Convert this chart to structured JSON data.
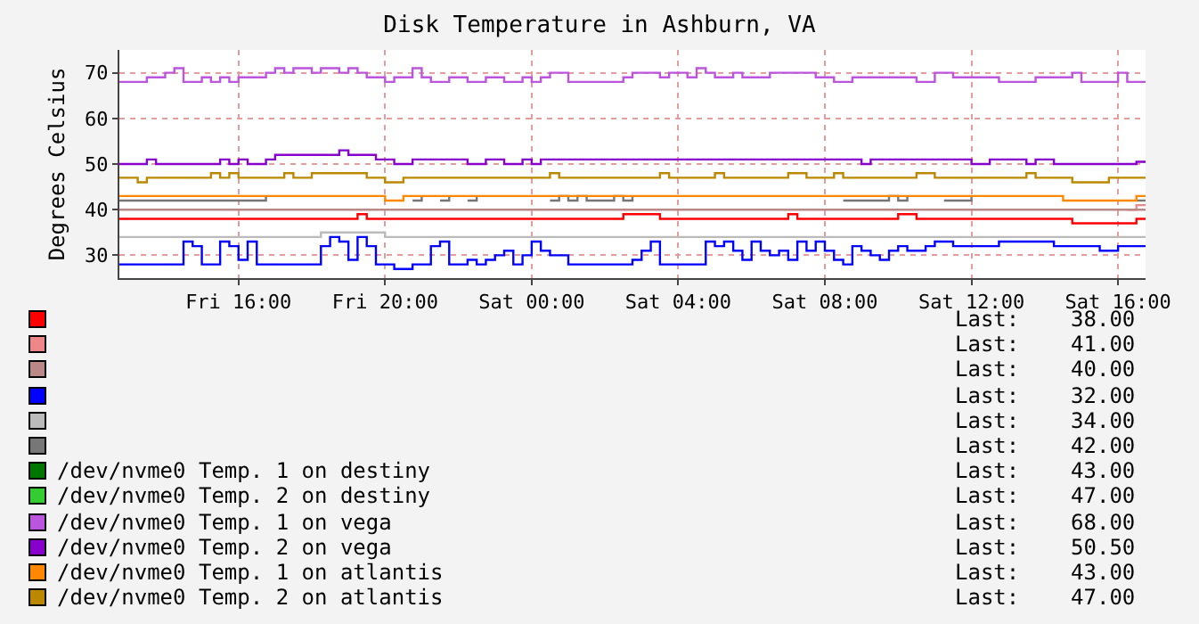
{
  "chart_data": {
    "type": "step",
    "title": "Disk Temperature in Ashburn, VA",
    "ylabel": "Degrees Celsius",
    "categories": [
      null,
      null,
      null,
      null,
      null,
      null,
      null,
      null,
      null,
      null,
      null,
      null,
      null,
      "Fri 16:00",
      null,
      null,
      null,
      null,
      null,
      null,
      null,
      null,
      null,
      null,
      null,
      null,
      null,
      null,
      null,
      "Fri 20:00",
      null,
      null,
      null,
      null,
      null,
      null,
      null,
      null,
      null,
      null,
      null,
      null,
      null,
      null,
      null,
      "Sat 00:00",
      null,
      null,
      null,
      null,
      null,
      null,
      null,
      null,
      null,
      null,
      null,
      null,
      null,
      null,
      null,
      "Sat 04:00",
      null,
      null,
      null,
      null,
      null,
      null,
      null,
      null,
      null,
      null,
      null,
      null,
      null,
      null,
      null,
      "Sat 08:00",
      null,
      null,
      null,
      null,
      null,
      null,
      null,
      null,
      null,
      null,
      null,
      null,
      null,
      null,
      null,
      "Sat 12:00",
      null,
      null,
      null,
      null,
      null,
      null,
      null,
      null,
      null,
      null,
      null,
      null,
      null,
      null,
      null,
      "Sat 16:00",
      null,
      null,
      null
    ],
    "ylim": [
      25,
      75
    ],
    "yticks": [
      30,
      40,
      50,
      60,
      70
    ],
    "grid": true,
    "legend": "bottom",
    "annotations": [
      "Last:    38.00",
      "Last:    41.00",
      "Last:    40.00",
      "Last:    32.00",
      "Last:    34.00",
      "Last:    42.00",
      "Last:    43.00",
      "Last:    47.00",
      "Last:    68.00",
      "Last:    50.50",
      "Last:    43.00",
      "Last:    47.00"
    ],
    "series": [
      {
        "color": "#ff0000",
        "values": [
          38,
          38,
          38,
          38,
          38,
          38,
          38,
          38,
          38,
          38,
          38,
          38,
          38,
          38,
          38,
          38,
          38,
          38,
          38,
          38,
          38,
          38,
          38,
          38,
          38,
          38,
          39,
          38,
          38,
          38,
          38,
          38,
          38,
          38,
          38,
          38,
          38,
          38,
          38,
          38,
          38,
          38,
          38,
          38,
          38,
          38,
          38,
          38,
          38,
          38,
          38,
          38,
          38,
          38,
          38,
          39,
          39,
          39,
          39,
          38,
          38,
          38,
          38,
          38,
          38,
          38,
          38,
          38,
          38,
          38,
          38,
          38,
          38,
          39,
          38,
          38,
          38,
          38,
          38,
          38,
          38,
          38,
          38,
          38,
          38,
          39,
          39,
          38,
          38,
          38,
          38,
          38,
          38,
          38,
          38,
          38,
          38,
          38,
          38,
          38,
          38,
          38,
          38,
          38,
          37,
          37,
          37,
          37,
          37,
          37,
          37,
          38,
          38
        ]
      },
      {
        "color": "#ee8888",
        "values": [
          null,
          null,
          null,
          null,
          null,
          null,
          null,
          null,
          null,
          null,
          null,
          null,
          null,
          null,
          null,
          null,
          null,
          null,
          null,
          null,
          null,
          null,
          null,
          null,
          null,
          null,
          null,
          null,
          null,
          null,
          null,
          null,
          null,
          null,
          null,
          null,
          null,
          null,
          null,
          null,
          null,
          null,
          null,
          null,
          null,
          null,
          null,
          null,
          null,
          null,
          null,
          null,
          null,
          null,
          null,
          null,
          null,
          null,
          null,
          null,
          null,
          null,
          null,
          null,
          null,
          null,
          null,
          null,
          null,
          null,
          null,
          null,
          null,
          null,
          null,
          null,
          null,
          null,
          null,
          null,
          null,
          null,
          null,
          null,
          null,
          null,
          null,
          null,
          null,
          null,
          null,
          null,
          null,
          null,
          null,
          null,
          null,
          null,
          null,
          null,
          null,
          null,
          null,
          null,
          null,
          null,
          null,
          null,
          null,
          null,
          40,
          41,
          41
        ]
      },
      {
        "color": "#bb8888",
        "values": [
          40,
          40,
          40,
          40,
          40,
          40,
          40,
          40,
          40,
          40,
          40,
          40,
          40,
          40,
          40,
          40,
          40,
          40,
          40,
          40,
          40,
          40,
          40,
          40,
          40,
          40,
          40,
          40,
          40,
          40,
          40,
          40,
          40,
          40,
          40,
          40,
          40,
          40,
          40,
          40,
          40,
          40,
          40,
          40,
          40,
          40,
          40,
          40,
          40,
          40,
          40,
          40,
          40,
          40,
          40,
          40,
          40,
          40,
          40,
          40,
          40,
          40,
          40,
          40,
          40,
          40,
          40,
          40,
          40,
          40,
          40,
          40,
          40,
          40,
          40,
          40,
          40,
          40,
          40,
          40,
          40,
          40,
          40,
          40,
          40,
          40,
          40,
          40,
          40,
          40,
          40,
          40,
          40,
          40,
          40,
          40,
          40,
          40,
          40,
          40,
          40,
          40,
          40,
          40,
          40,
          40,
          40,
          40,
          40,
          40,
          40,
          40,
          40
        ]
      },
      {
        "color": "#0000ff",
        "values": [
          28,
          28,
          28,
          28,
          28,
          28,
          28,
          33,
          32,
          28,
          28,
          33,
          32,
          29,
          33,
          28,
          28,
          28,
          28,
          28,
          28,
          28,
          32,
          34,
          33,
          29,
          34,
          32,
          28,
          28,
          27,
          27,
          28,
          28,
          32,
          33,
          28,
          28,
          29,
          28,
          29,
          30,
          31,
          28,
          30,
          33,
          31,
          30,
          30,
          28,
          28,
          28,
          28,
          28,
          28,
          28,
          29,
          31,
          33,
          28,
          28,
          28,
          28,
          28,
          33,
          32,
          33,
          31,
          29,
          33,
          31,
          30,
          31,
          29,
          33,
          31,
          33,
          31,
          29,
          28,
          32,
          31,
          30,
          29,
          31,
          32,
          31,
          31,
          32,
          33,
          33,
          32,
          32,
          32,
          32,
          32,
          33,
          33,
          33,
          33,
          33,
          33,
          32,
          32,
          32,
          32,
          32,
          31,
          31,
          32,
          32,
          32,
          32
        ]
      },
      {
        "color": "#bbbbbb",
        "values": [
          34,
          34,
          34,
          34,
          34,
          34,
          34,
          34,
          34,
          34,
          34,
          34,
          34,
          34,
          34,
          34,
          34,
          34,
          34,
          34,
          34,
          34,
          35,
          35,
          35,
          35,
          35,
          35,
          35,
          34,
          34,
          34,
          34,
          34,
          34,
          34,
          34,
          34,
          34,
          34,
          34,
          34,
          34,
          34,
          34,
          34,
          34,
          34,
          34,
          34,
          34,
          34,
          34,
          34,
          34,
          34,
          34,
          34,
          34,
          34,
          34,
          34,
          34,
          34,
          34,
          34,
          34,
          34,
          34,
          34,
          34,
          34,
          34,
          34,
          34,
          34,
          34,
          34,
          34,
          34,
          34,
          34,
          34,
          34,
          34,
          34,
          34,
          34,
          34,
          34,
          34,
          34,
          34,
          34,
          34,
          34,
          34,
          34,
          34,
          34,
          34,
          34,
          34,
          34,
          34,
          34,
          34,
          34,
          34,
          34,
          34,
          34,
          34
        ]
      },
      {
        "color": "#777777",
        "values": [
          42,
          42,
          42,
          42,
          42,
          42,
          42,
          42,
          42,
          42,
          42,
          42,
          42,
          42,
          42,
          42,
          43,
          null,
          null,
          null,
          null,
          null,
          null,
          null,
          null,
          null,
          null,
          null,
          null,
          null,
          null,
          null,
          42,
          43,
          null,
          42,
          43,
          null,
          42,
          43,
          null,
          null,
          null,
          null,
          null,
          null,
          null,
          42,
          43,
          42,
          43,
          42,
          42,
          42,
          43,
          42,
          43,
          null,
          null,
          null,
          null,
          null,
          null,
          null,
          null,
          null,
          null,
          null,
          null,
          null,
          null,
          null,
          null,
          null,
          null,
          null,
          null,
          null,
          null,
          42,
          42,
          42,
          42,
          42,
          43,
          42,
          43,
          null,
          null,
          null,
          42,
          42,
          42,
          43,
          null,
          null,
          null,
          null,
          null,
          null,
          null,
          null,
          null,
          null,
          null,
          null,
          null,
          null,
          null,
          null,
          null,
          42,
          42
        ]
      },
      {
        "name": "/dev/nvme0 Temp. 1 on destiny",
        "color": "#007700",
        "values": [
          null,
          null,
          null,
          null,
          null,
          null,
          null,
          null,
          null,
          null,
          null,
          null,
          null,
          null,
          null,
          null,
          null,
          null,
          null,
          null,
          null,
          null,
          null,
          null,
          null,
          null,
          null,
          null,
          null,
          null,
          null,
          null,
          null,
          null,
          null,
          null,
          null,
          null,
          null,
          null,
          null,
          null,
          null,
          null,
          null,
          null,
          null,
          null,
          null,
          null,
          null,
          null,
          null,
          null,
          null,
          null,
          null,
          null,
          null,
          null,
          null,
          null,
          null,
          null,
          null,
          null,
          null,
          null,
          null,
          null,
          null,
          null,
          null,
          null,
          null,
          null,
          null,
          null,
          null,
          null,
          null,
          null,
          null,
          null,
          null,
          null,
          null,
          null,
          null,
          null,
          null,
          null,
          null,
          null,
          null,
          null,
          null,
          null,
          null,
          null,
          null,
          null,
          null,
          null,
          null,
          null,
          null,
          null,
          null,
          null,
          null,
          null,
          null
        ]
      },
      {
        "name": "/dev/nvme0 Temp. 2 on destiny",
        "color": "#33cc33",
        "values": [
          null,
          null,
          null,
          null,
          null,
          null,
          null,
          null,
          null,
          null,
          null,
          null,
          null,
          null,
          null,
          null,
          null,
          null,
          null,
          null,
          null,
          null,
          null,
          null,
          null,
          null,
          null,
          null,
          null,
          null,
          null,
          null,
          null,
          null,
          null,
          null,
          null,
          null,
          null,
          null,
          null,
          null,
          null,
          null,
          null,
          null,
          null,
          null,
          null,
          null,
          null,
          null,
          null,
          null,
          null,
          null,
          null,
          null,
          null,
          null,
          null,
          null,
          null,
          null,
          null,
          null,
          null,
          null,
          null,
          null,
          null,
          null,
          null,
          null,
          null,
          null,
          null,
          null,
          null,
          null,
          null,
          null,
          null,
          null,
          null,
          null,
          null,
          null,
          null,
          null,
          null,
          null,
          null,
          null,
          null,
          null,
          null,
          null,
          null,
          null,
          null,
          null,
          null,
          null,
          null,
          null,
          null,
          null,
          null,
          null,
          null,
          null,
          null
        ]
      },
      {
        "name": "/dev/nvme0 Temp. 1 on vega",
        "color": "#bb55dd",
        "values": [
          68,
          68,
          68,
          69,
          69,
          70,
          71,
          68,
          68,
          69,
          68,
          69,
          68,
          69,
          69,
          69,
          70,
          71,
          70,
          71,
          71,
          70,
          71,
          71,
          70,
          71,
          70,
          69,
          69,
          68,
          69,
          69,
          71,
          69,
          68,
          68,
          69,
          69,
          68,
          68,
          69,
          69,
          68,
          68,
          69,
          68,
          69,
          70,
          70,
          68,
          68,
          68,
          68,
          68,
          68,
          69,
          70,
          70,
          70,
          69,
          70,
          70,
          69,
          71,
          70,
          69,
          69,
          70,
          69,
          69,
          69,
          70,
          70,
          70,
          70,
          70,
          69,
          69,
          68,
          68,
          69,
          69,
          69,
          69,
          69,
          69,
          69,
          68,
          68,
          70,
          70,
          69,
          69,
          69,
          69,
          69,
          68,
          68,
          68,
          68,
          69,
          69,
          69,
          69,
          70,
          68,
          68,
          68,
          68,
          70,
          68,
          68,
          68
        ]
      },
      {
        "name": "/dev/nvme0 Temp. 2 on vega",
        "color": "#8800cc",
        "values": [
          50,
          50,
          50,
          51,
          50,
          50,
          50,
          50,
          50,
          50,
          50,
          51,
          50,
          51,
          50,
          50,
          51,
          52,
          52,
          52,
          52,
          52,
          52,
          52,
          53,
          52,
          52,
          52,
          51,
          51,
          50,
          50,
          51,
          51,
          51,
          51,
          51,
          51,
          50,
          50,
          51,
          51,
          50,
          50,
          51,
          50,
          51,
          51,
          51,
          51,
          51,
          51,
          51,
          51,
          51,
          51,
          51,
          51,
          51,
          51,
          51,
          51,
          51,
          51,
          51,
          51,
          51,
          51,
          51,
          51,
          51,
          51,
          51,
          51,
          51,
          51,
          51,
          51,
          51,
          51,
          51,
          50,
          51,
          51,
          51,
          51,
          51,
          51,
          51,
          51,
          51,
          51,
          51,
          50,
          50,
          51,
          51,
          51,
          51,
          50,
          51,
          51,
          50,
          50,
          50,
          50,
          50,
          50,
          50,
          50,
          50,
          50.5,
          50.5
        ]
      },
      {
        "name": "/dev/nvme0 Temp. 1 on atlantis",
        "color": "#ff8800",
        "values": [
          43,
          43,
          43,
          43,
          43,
          43,
          43,
          43,
          43,
          43,
          43,
          43,
          43,
          43,
          43,
          43,
          43,
          43,
          43,
          43,
          43,
          43,
          43,
          43,
          43,
          43,
          43,
          43,
          43,
          42,
          42,
          43,
          43,
          43,
          43,
          43,
          43,
          43,
          43,
          43,
          43,
          43,
          43,
          43,
          43,
          43,
          43,
          43,
          43,
          43,
          43,
          43,
          43,
          43,
          43,
          43,
          43,
          43,
          43,
          43,
          43,
          43,
          43,
          43,
          43,
          43,
          43,
          43,
          43,
          43,
          43,
          43,
          43,
          43,
          43,
          43,
          43,
          43,
          43,
          43,
          43,
          43,
          43,
          43,
          43,
          43,
          43,
          43,
          43,
          43,
          43,
          43,
          43,
          43,
          43,
          43,
          43,
          43,
          43,
          43,
          43,
          43,
          43,
          42,
          42,
          42,
          42,
          42,
          42,
          42,
          42,
          43,
          43
        ]
      },
      {
        "name": "/dev/nvme0 Temp. 2 on atlantis",
        "color": "#bb8800",
        "values": [
          47,
          47,
          46,
          47,
          47,
          47,
          47,
          47,
          47,
          47,
          48,
          47,
          48,
          47,
          47,
          47,
          47,
          47,
          48,
          47,
          47,
          48,
          48,
          48,
          48,
          48,
          48,
          47,
          47,
          46,
          46,
          47,
          47,
          47,
          47,
          47,
          47,
          47,
          47,
          47,
          47,
          47,
          47,
          47,
          47,
          47,
          47,
          48,
          47,
          47,
          47,
          47,
          47,
          47,
          47,
          47,
          47,
          47,
          47,
          48,
          47,
          47,
          47,
          47,
          47,
          48,
          47,
          47,
          47,
          47,
          47,
          47,
          47,
          48,
          48,
          47,
          47,
          47,
          48,
          47,
          47,
          47,
          47,
          47,
          47,
          47,
          47,
          48,
          48,
          47,
          47,
          47,
          47,
          47,
          47,
          47,
          47,
          47,
          47,
          48,
          47,
          47,
          47,
          47,
          46,
          46,
          46,
          46,
          47,
          47,
          47,
          47,
          47
        ]
      }
    ]
  }
}
